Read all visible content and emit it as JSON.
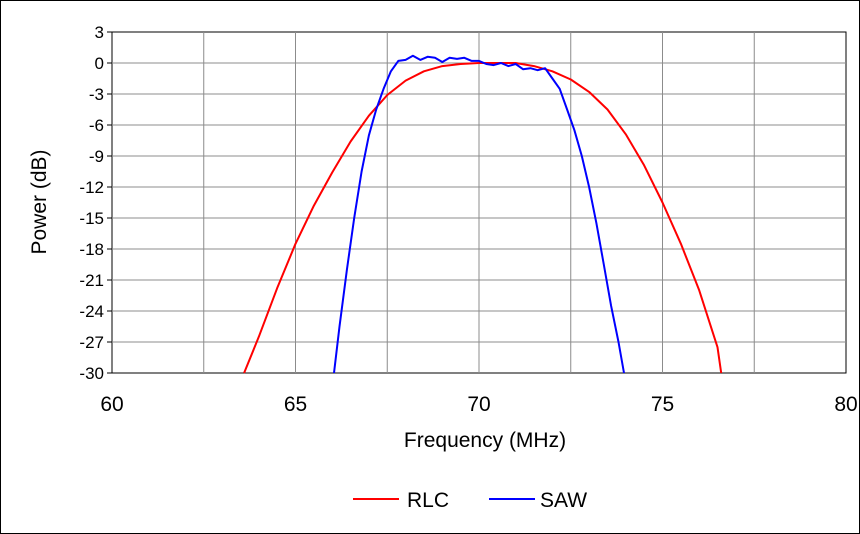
{
  "chart_data": {
    "type": "line",
    "xlabel": "Frequency (MHz)",
    "ylabel": "Power (dB)",
    "xlim": [
      60,
      80
    ],
    "ylim": [
      -30,
      3
    ],
    "xticks": [
      60,
      65,
      70,
      75,
      80
    ],
    "yticks": [
      3,
      0,
      -3,
      -6,
      -9,
      -12,
      -15,
      -18,
      -21,
      -24,
      -27,
      -30
    ],
    "x_minor_step": 2.5,
    "grid": true,
    "legend_position": "bottom-center",
    "series": [
      {
        "name": "RLC",
        "color": "#ff0000",
        "x": [
          63.6,
          64.0,
          64.5,
          65.0,
          65.5,
          66.0,
          66.5,
          67.0,
          67.5,
          68.0,
          68.5,
          69.0,
          69.5,
          70.0,
          70.5,
          71.0,
          71.5,
          72.0,
          72.5,
          73.0,
          73.5,
          74.0,
          74.5,
          75.0,
          75.5,
          76.0,
          76.5,
          76.6
        ],
        "y": [
          -30.0,
          -26.5,
          -21.8,
          -17.5,
          -13.8,
          -10.6,
          -7.6,
          -5.1,
          -3.1,
          -1.7,
          -0.8,
          -0.3,
          -0.1,
          0.0,
          0.0,
          0.0,
          -0.3,
          -0.8,
          -1.6,
          -2.8,
          -4.5,
          -6.9,
          -9.9,
          -13.5,
          -17.5,
          -22.0,
          -27.5,
          -30.0
        ]
      },
      {
        "name": "SAW",
        "color": "#0000ff",
        "x": [
          66.05,
          66.2,
          66.4,
          66.6,
          66.8,
          67.0,
          67.2,
          67.4,
          67.6,
          67.8,
          68.0,
          68.2,
          68.4,
          68.6,
          68.8,
          69.0,
          69.2,
          69.4,
          69.6,
          69.8,
          70.0,
          70.2,
          70.4,
          70.6,
          70.8,
          71.0,
          71.2,
          71.4,
          71.6,
          71.8,
          72.0,
          72.2,
          72.4,
          72.6,
          72.8,
          73.0,
          73.2,
          73.4,
          73.6,
          73.8,
          73.95
        ],
        "y": [
          -30.0,
          -25.5,
          -20.0,
          -15.0,
          -10.5,
          -7.0,
          -4.5,
          -2.5,
          -0.8,
          0.2,
          0.3,
          0.7,
          0.3,
          0.6,
          0.5,
          0.1,
          0.5,
          0.4,
          0.5,
          0.2,
          0.2,
          -0.1,
          -0.2,
          0.0,
          -0.3,
          -0.1,
          -0.6,
          -0.5,
          -0.7,
          -0.5,
          -1.5,
          -2.5,
          -4.5,
          -6.5,
          -9.0,
          -12.0,
          -15.5,
          -19.5,
          -23.5,
          -27.0,
          -30.0
        ]
      }
    ]
  }
}
